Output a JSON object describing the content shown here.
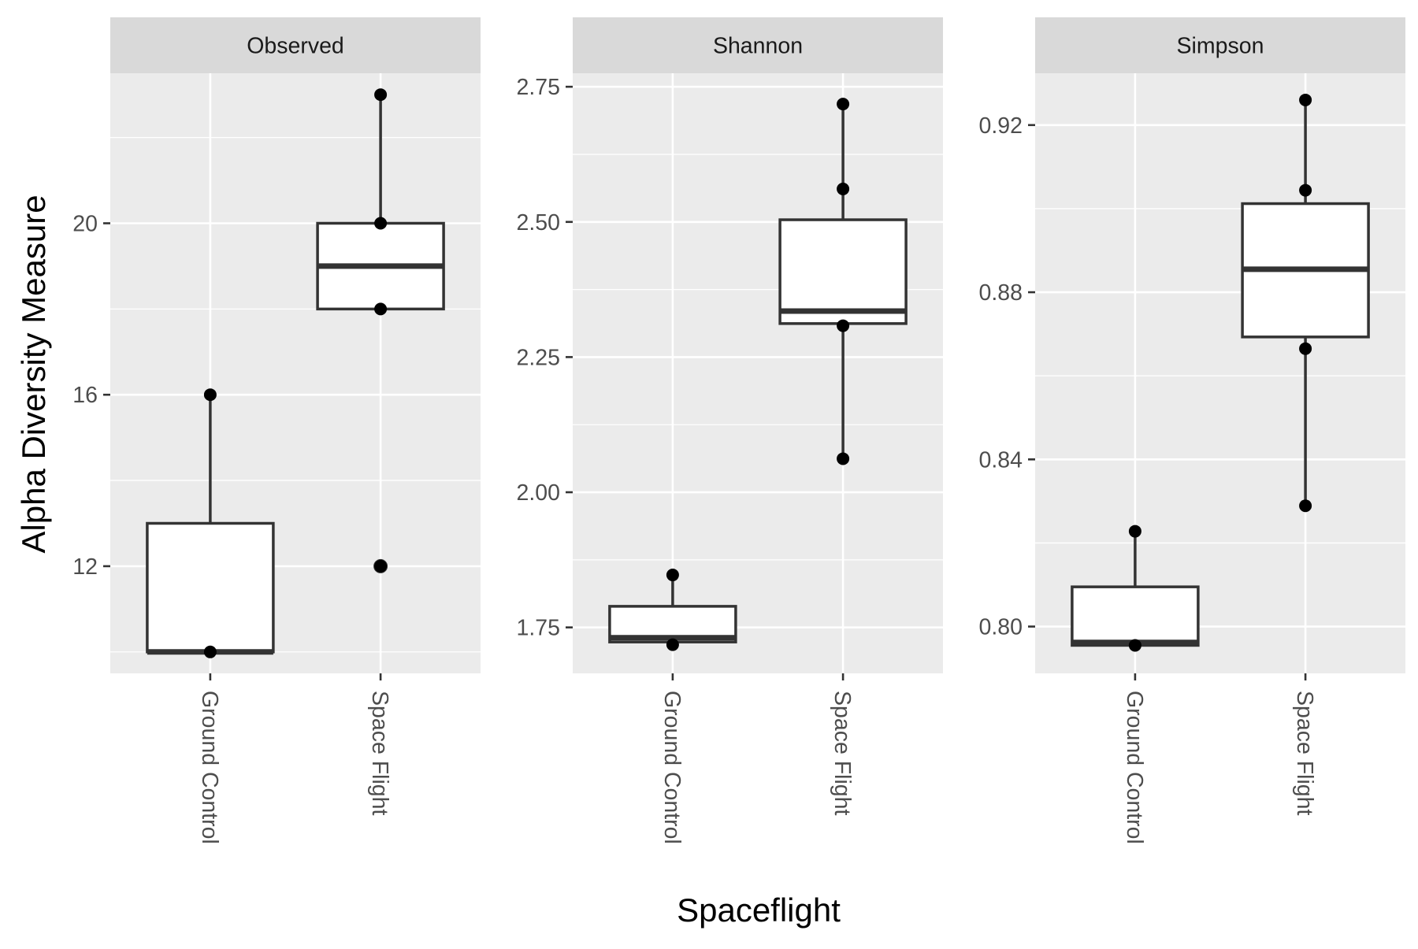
{
  "chart_data": {
    "type": "box",
    "xlabel": "Spaceflight",
    "ylabel": "Alpha Diversity Measure",
    "categories": [
      "Ground Control",
      "Space Flight"
    ],
    "grid": true,
    "legend": "none",
    "panels": [
      {
        "title": "Observed",
        "ylim": [
          9.5,
          23.5
        ],
        "ticks": [
          12,
          16,
          20
        ],
        "tick_labels": [
          "12",
          "16",
          "20"
        ],
        "minor_ticks": [
          10,
          14,
          18,
          22
        ],
        "boxes": [
          {
            "category": "Ground Control",
            "min": 10,
            "q1": 10,
            "median": 10,
            "q3": 13,
            "max": 16,
            "outliers": []
          },
          {
            "category": "Space Flight",
            "min": 18,
            "q1": 18,
            "median": 19,
            "q3": 20,
            "max": 23,
            "outliers": [
              12
            ]
          }
        ],
        "points": [
          {
            "category": "Ground Control",
            "values": [
              10,
              16
            ]
          },
          {
            "category": "Space Flight",
            "values": [
              12,
              18,
              20,
              23
            ]
          }
        ]
      },
      {
        "title": "Shannon",
        "ylim": [
          1.665,
          2.775
        ],
        "ticks": [
          1.75,
          2.0,
          2.25,
          2.5,
          2.75
        ],
        "tick_labels": [
          "1.75",
          "2.00",
          "2.25",
          "2.50",
          "2.75"
        ],
        "minor_ticks": [
          1.875,
          2.125,
          2.375,
          2.625
        ],
        "boxes": [
          {
            "category": "Ground Control",
            "min": 1.718,
            "q1": 1.723,
            "median": 1.731,
            "q3": 1.789,
            "max": 1.847,
            "outliers": []
          },
          {
            "category": "Space Flight",
            "min": 2.062,
            "q1": 2.312,
            "median": 2.335,
            "q3": 2.504,
            "max": 2.718,
            "outliers": []
          }
        ],
        "points": [
          {
            "category": "Ground Control",
            "values": [
              1.718,
              1.847
            ]
          },
          {
            "category": "Space Flight",
            "values": [
              2.062,
              2.308,
              2.561,
              2.718
            ]
          }
        ]
      },
      {
        "title": "Simpson",
        "ylim": [
          0.7888,
          0.9324
        ],
        "ticks": [
          0.8,
          0.84,
          0.88,
          0.92
        ],
        "tick_labels": [
          "0.80",
          "0.84",
          "0.88",
          "0.92"
        ],
        "minor_ticks": [
          0.82,
          0.86,
          0.9
        ],
        "boxes": [
          {
            "category": "Ground Control",
            "min": 0.7955,
            "q1": 0.7955,
            "median": 0.7962,
            "q3": 0.8095,
            "max": 0.8228,
            "outliers": []
          },
          {
            "category": "Space Flight",
            "min": 0.8289,
            "q1": 0.8693,
            "median": 0.8855,
            "q3": 0.9012,
            "max": 0.926,
            "outliers": []
          }
        ],
        "points": [
          {
            "category": "Ground Control",
            "values": [
              0.7955,
              0.8228
            ]
          },
          {
            "category": "Space Flight",
            "values": [
              0.8289,
              0.8665,
              0.9044,
              0.926
            ]
          }
        ]
      }
    ]
  }
}
